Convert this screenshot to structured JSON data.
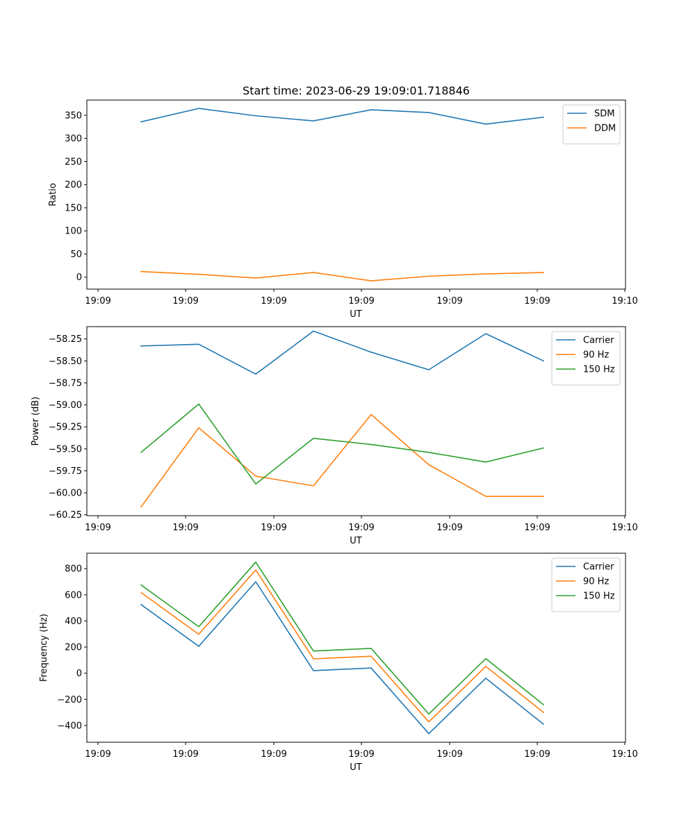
{
  "chart_data": [
    {
      "type": "line",
      "title": "Start time: 2023-06-29 19:09:01.718846",
      "xlabel": "UT",
      "ylabel": "Ratio",
      "x_tick_labels": [
        "19:09",
        "19:09",
        "19:09",
        "19:09",
        "19:09",
        "19:09",
        "19:09",
        "19:10"
      ],
      "ylim": [
        -26,
        383
      ],
      "y_ticks": [
        0,
        50,
        100,
        150,
        200,
        250,
        300,
        350
      ],
      "y_tick_labels": [
        "0",
        "50",
        "100",
        "150",
        "200",
        "250",
        "300",
        "350"
      ],
      "legend_position": "top-right",
      "series": [
        {
          "name": "SDM",
          "color": "#1f77b4",
          "values": [
            336,
            365,
            349,
            338,
            362,
            356,
            331,
            346
          ]
        },
        {
          "name": "DDM",
          "color": "#ff7f0e",
          "values": [
            12,
            6,
            -2,
            10,
            -8,
            2,
            7,
            10
          ]
        }
      ]
    },
    {
      "type": "line",
      "title": "",
      "xlabel": "UT",
      "ylabel": "Power (dB)",
      "x_tick_labels": [
        "19:09",
        "19:09",
        "19:09",
        "19:09",
        "19:09",
        "19:09",
        "19:09",
        "19:10"
      ],
      "ylim": [
        -60.26,
        -58.11
      ],
      "y_ticks": [
        -60.25,
        -60.0,
        -59.75,
        -59.5,
        -59.25,
        -59.0,
        -58.75,
        -58.5,
        -58.25
      ],
      "y_tick_labels": [
        "−60.25",
        "−60.00",
        "−59.75",
        "−59.50",
        "−59.25",
        "−59.00",
        "−58.75",
        "−58.50",
        "−58.25"
      ],
      "legend_position": "top-right",
      "series": [
        {
          "name": "Carrier",
          "color": "#1f77b4",
          "values": [
            -58.33,
            -58.31,
            -58.65,
            -58.16,
            -58.4,
            -58.6,
            -58.19,
            -58.5
          ]
        },
        {
          "name": "90 Hz",
          "color": "#ff7f0e",
          "values": [
            -60.16,
            -59.26,
            -59.81,
            -59.92,
            -59.11,
            -59.68,
            -60.04,
            -60.04
          ]
        },
        {
          "name": "150 Hz",
          "color": "#2ca02c",
          "values": [
            -59.54,
            -58.99,
            -59.9,
            -59.38,
            -59.45,
            -59.54,
            -59.65,
            -59.49
          ]
        }
      ]
    },
    {
      "type": "line",
      "title": "",
      "xlabel": "UT",
      "ylabel": "Frequency (Hz)",
      "x_tick_labels": [
        "19:09",
        "19:09",
        "19:09",
        "19:09",
        "19:09",
        "19:09",
        "19:09",
        "19:10"
      ],
      "ylim": [
        -528,
        918
      ],
      "y_ticks": [
        -400,
        -200,
        0,
        200,
        400,
        600,
        800
      ],
      "y_tick_labels": [
        "−400",
        "−200",
        "0",
        "200",
        "400",
        "600",
        "800"
      ],
      "legend_position": "top-right",
      "series": [
        {
          "name": "Carrier",
          "color": "#1f77b4",
          "values": [
            525,
            206,
            700,
            20,
            40,
            -462,
            -38,
            -390
          ]
        },
        {
          "name": "90 Hz",
          "color": "#ff7f0e",
          "values": [
            617,
            298,
            790,
            110,
            130,
            -372,
            52,
            -300
          ]
        },
        {
          "name": "150 Hz",
          "color": "#2ca02c",
          "values": [
            675,
            356,
            850,
            170,
            190,
            -312,
            112,
            -240
          ]
        }
      ]
    }
  ]
}
